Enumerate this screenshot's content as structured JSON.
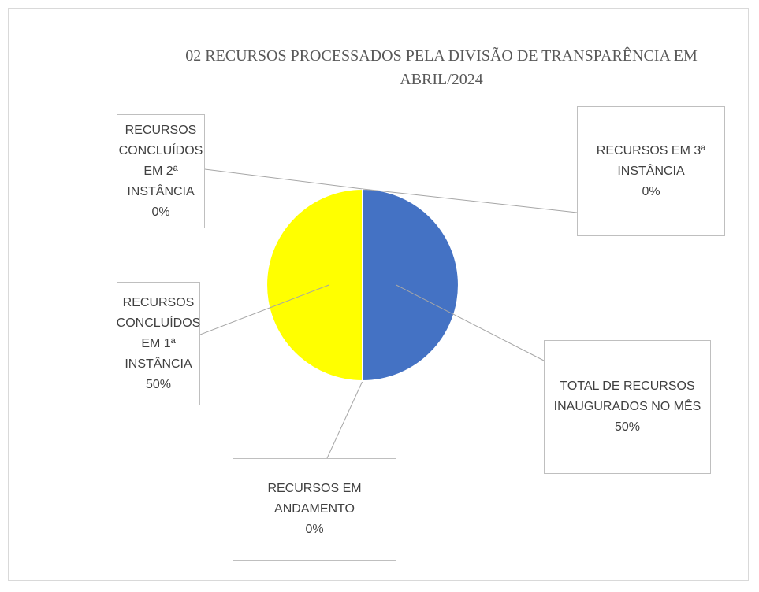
{
  "chart_data": {
    "type": "pie",
    "title": "02 RECURSOS PROCESSADOS PELA DIVISÃO DE TRANSPARÊNCIA EM ABRIL/2024",
    "categories": [
      "TOTAL DE RECURSOS INAUGURADOS NO MÊS",
      "RECURSOS EM ANDAMENTO",
      "RECURSOS CONCLUÍDOS EM 1ª INSTÂNCIA",
      "RECURSOS CONCLUÍDOS EM 2ª INSTÂNCIA",
      "RECURSOS EM 3ª INSTÂNCIA"
    ],
    "values": [
      50,
      0,
      50,
      0,
      0
    ],
    "value_labels": [
      "50%",
      "0%",
      "50%",
      "0%",
      "0%"
    ],
    "colors": [
      "#4472c4",
      "#ed7d31",
      "#ffff00",
      "#ffc000",
      "#5b9bd5"
    ]
  }
}
